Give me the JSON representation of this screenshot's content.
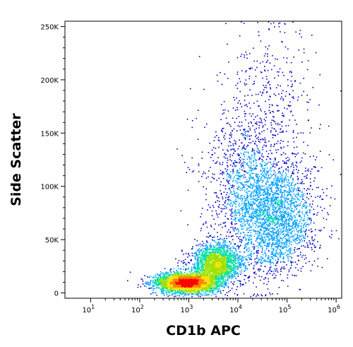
{
  "chart_data": {
    "type": "scatter",
    "subtype": "flow-cytometry density dot plot",
    "xlabel": "CD1b APC",
    "ylabel": "Side Scatter",
    "x_scale": "log",
    "y_scale": "linear",
    "xlim": [
      3,
      1300000
    ],
    "ylim": [
      -5000,
      255000
    ],
    "x_ticks": [
      {
        "base": "10",
        "exp": "1",
        "value": 10
      },
      {
        "base": "10",
        "exp": "2",
        "value": 100
      },
      {
        "base": "10",
        "exp": "3",
        "value": 1000
      },
      {
        "base": "10",
        "exp": "4",
        "value": 10000
      },
      {
        "base": "10",
        "exp": "5",
        "value": 100000
      },
      {
        "base": "10",
        "exp": "6",
        "value": 1000000
      }
    ],
    "y_ticks": [
      {
        "label": "0",
        "value": 0
      },
      {
        "label": "50K",
        "value": 50000
      },
      {
        "label": "100K",
        "value": 100000
      },
      {
        "label": "150K",
        "value": 150000
      },
      {
        "label": "200K",
        "value": 200000
      },
      {
        "label": "250K",
        "value": 250000
      }
    ],
    "grid": false,
    "color_scale": [
      "#0000c8",
      "#00a0ff",
      "#00e0a0",
      "#a0e000",
      "#ffe000",
      "#ff8000",
      "#ff0000"
    ],
    "populations": [
      {
        "x_center": 900,
        "y_center": 10000,
        "x_spread_decades": 0.3,
        "y_spread": 4500,
        "relative_density": 1.0
      },
      {
        "x_center": 3500,
        "y_center": 28000,
        "x_spread_decades": 0.25,
        "y_spread": 9000,
        "relative_density": 0.55
      },
      {
        "x_center": 60000,
        "y_center": 72000,
        "x_spread_decades": 0.4,
        "y_spread": 25000,
        "relative_density": 0.6
      },
      {
        "x_center": 15000,
        "y_center": 95000,
        "x_spread_decades": 0.45,
        "y_spread": 40000,
        "relative_density": 0.35
      },
      {
        "x_center": 50000,
        "y_center": 170000,
        "x_spread_decades": 0.5,
        "y_spread": 45000,
        "relative_density": 0.12
      }
    ]
  }
}
